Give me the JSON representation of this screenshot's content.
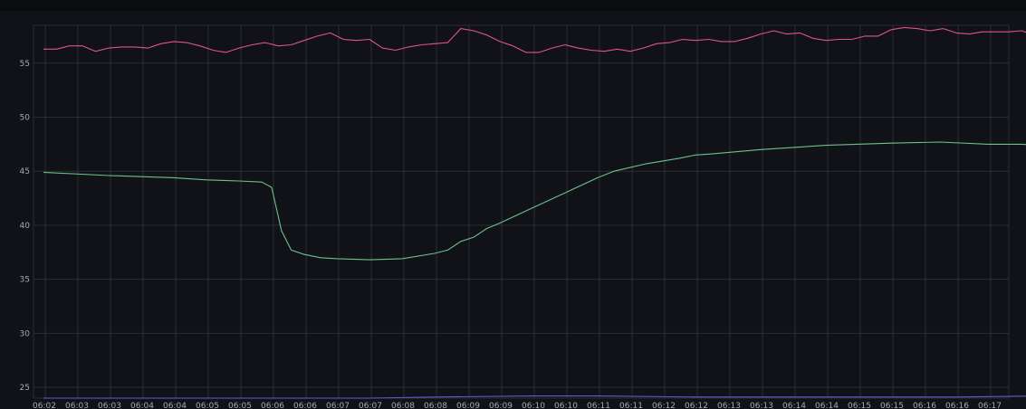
{
  "chart_data": {
    "type": "line",
    "title": "",
    "xlabel": "",
    "ylabel": "",
    "ylim": [
      24,
      58.5
    ],
    "grid": true,
    "legend": "none",
    "y_ticks": [
      25,
      30,
      35,
      40,
      45,
      50,
      55
    ],
    "x_tick_labels": [
      "06:02",
      "06:03",
      "06:03",
      "06:04",
      "06:04",
      "06:05",
      "06:05",
      "06:06",
      "06:06",
      "06:07",
      "06:07",
      "06:08",
      "06:08",
      "06:09",
      "06:09",
      "06:10",
      "06:10",
      "06:11",
      "06:11",
      "06:12",
      "06:12",
      "06:13",
      "06:13",
      "06:14",
      "06:14",
      "06:15",
      "06:15",
      "06:16",
      "06:16",
      "06:17"
    ],
    "series": [
      {
        "color": "#e0528a",
        "points": [
          [
            0,
            56.3
          ],
          [
            0.4,
            56.3
          ],
          [
            0.8,
            56.6
          ],
          [
            1.2,
            56.6
          ],
          [
            1.6,
            56.1
          ],
          [
            2.0,
            56.4
          ],
          [
            2.4,
            56.5
          ],
          [
            2.8,
            56.5
          ],
          [
            3.2,
            56.4
          ],
          [
            3.6,
            56.8
          ],
          [
            4.0,
            57.0
          ],
          [
            4.4,
            56.9
          ],
          [
            4.8,
            56.6
          ],
          [
            5.2,
            56.2
          ],
          [
            5.6,
            56.0
          ],
          [
            6.0,
            56.4
          ],
          [
            6.4,
            56.7
          ],
          [
            6.8,
            56.9
          ],
          [
            7.2,
            56.6
          ],
          [
            7.6,
            56.7
          ],
          [
            8.0,
            57.1
          ],
          [
            8.4,
            57.5
          ],
          [
            8.8,
            57.8
          ],
          [
            9.2,
            57.2
          ],
          [
            9.6,
            57.1
          ],
          [
            10.0,
            57.2
          ],
          [
            10.4,
            56.4
          ],
          [
            10.8,
            56.2
          ],
          [
            11.2,
            56.5
          ],
          [
            11.6,
            56.7
          ],
          [
            12.0,
            56.8
          ],
          [
            12.4,
            56.9
          ],
          [
            12.8,
            58.2
          ],
          [
            13.2,
            58.0
          ],
          [
            13.6,
            57.6
          ],
          [
            14.0,
            57.0
          ],
          [
            14.4,
            56.6
          ],
          [
            14.8,
            56.0
          ],
          [
            15.2,
            56.0
          ],
          [
            15.6,
            56.4
          ],
          [
            16.0,
            56.7
          ],
          [
            16.4,
            56.4
          ],
          [
            16.8,
            56.2
          ],
          [
            17.2,
            56.1
          ],
          [
            17.6,
            56.3
          ],
          [
            18.0,
            56.1
          ],
          [
            18.4,
            56.4
          ],
          [
            18.8,
            56.8
          ],
          [
            19.2,
            56.9
          ],
          [
            19.6,
            57.2
          ],
          [
            20.0,
            57.1
          ],
          [
            20.4,
            57.2
          ],
          [
            20.8,
            57.0
          ],
          [
            21.2,
            57.0
          ],
          [
            21.6,
            57.3
          ],
          [
            22.0,
            57.7
          ],
          [
            22.4,
            58.0
          ],
          [
            22.8,
            57.7
          ],
          [
            23.2,
            57.8
          ],
          [
            23.6,
            57.3
          ],
          [
            24.0,
            57.1
          ],
          [
            24.4,
            57.2
          ],
          [
            24.8,
            57.2
          ],
          [
            25.2,
            57.5
          ],
          [
            25.6,
            57.5
          ],
          [
            26.0,
            58.1
          ],
          [
            26.4,
            58.3
          ],
          [
            26.8,
            58.2
          ],
          [
            27.2,
            58.0
          ],
          [
            27.6,
            58.2
          ],
          [
            28.0,
            57.8
          ],
          [
            28.4,
            57.7
          ],
          [
            28.8,
            57.9
          ],
          [
            29.2,
            57.9
          ],
          [
            29.6,
            57.9
          ],
          [
            30.0,
            58.0
          ],
          [
            30.4,
            57.6
          ],
          [
            30.6,
            57.7
          ]
        ]
      },
      {
        "color": "#6cc08b",
        "points": [
          [
            0,
            44.9
          ],
          [
            2.0,
            44.6
          ],
          [
            4.0,
            44.4
          ],
          [
            5.0,
            44.2
          ],
          [
            6.0,
            44.1
          ],
          [
            6.7,
            44.0
          ],
          [
            7.0,
            43.5
          ],
          [
            7.3,
            39.5
          ],
          [
            7.6,
            37.7
          ],
          [
            8.0,
            37.3
          ],
          [
            8.5,
            37.0
          ],
          [
            9.0,
            36.9
          ],
          [
            10.0,
            36.8
          ],
          [
            11.0,
            36.9
          ],
          [
            12.0,
            37.4
          ],
          [
            12.4,
            37.7
          ],
          [
            12.8,
            38.5
          ],
          [
            13.2,
            38.9
          ],
          [
            13.6,
            39.7
          ],
          [
            14.0,
            40.2
          ],
          [
            15.0,
            41.6
          ],
          [
            16.0,
            43.0
          ],
          [
            17.0,
            44.4
          ],
          [
            17.5,
            45.0
          ],
          [
            18.5,
            45.7
          ],
          [
            19.5,
            46.2
          ],
          [
            20.0,
            46.5
          ],
          [
            20.5,
            46.6
          ],
          [
            22.0,
            47.0
          ],
          [
            24.0,
            47.4
          ],
          [
            26.0,
            47.6
          ],
          [
            27.5,
            47.7
          ],
          [
            29.0,
            47.5
          ],
          [
            30.0,
            47.5
          ],
          [
            30.6,
            47.4
          ]
        ]
      },
      {
        "color": "#5b5fd0",
        "points": [
          [
            0,
            24.0
          ],
          [
            10.0,
            24.0
          ],
          [
            12.0,
            24.1
          ],
          [
            15.0,
            24.2
          ],
          [
            17.0,
            24.2
          ],
          [
            20.0,
            24.1
          ],
          [
            25.0,
            24.1
          ],
          [
            28.0,
            24.1
          ],
          [
            30.6,
            24.2
          ]
        ]
      }
    ]
  }
}
